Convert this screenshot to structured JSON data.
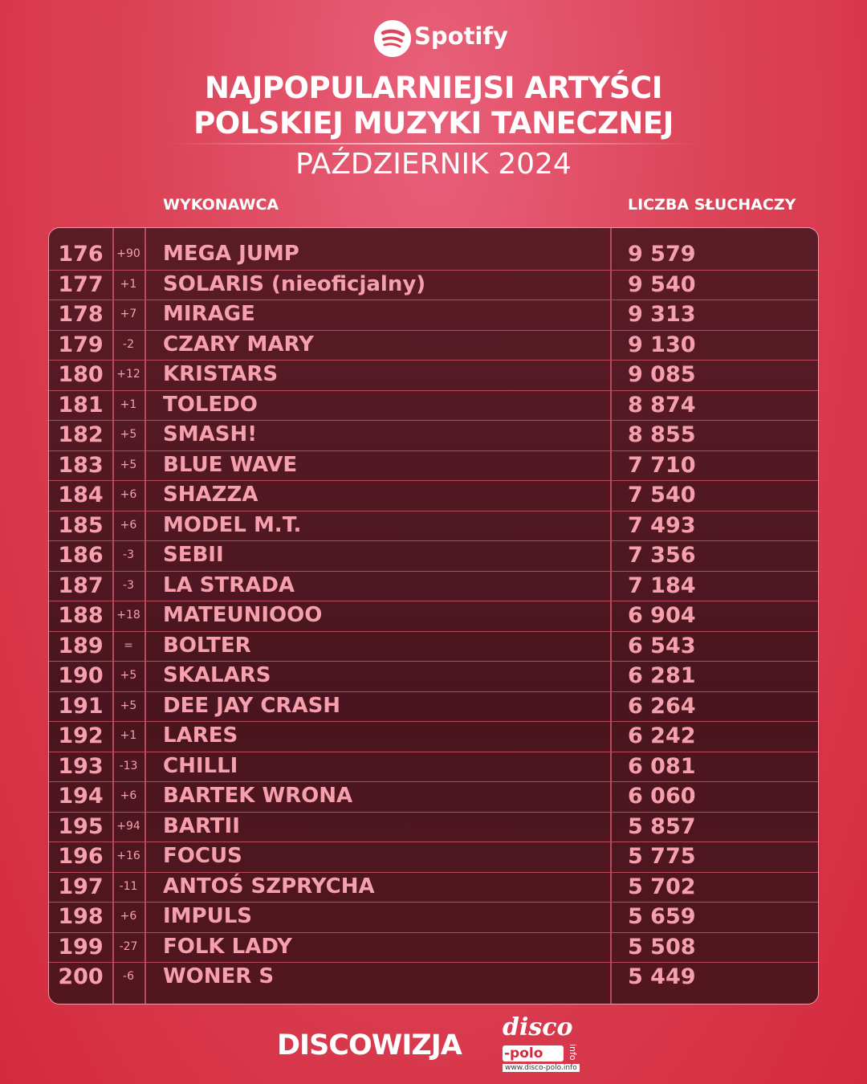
{
  "header": {
    "brand": "Spotify",
    "title_lines": [
      "NAJPOPULARNIEJSI ARTYŚCI",
      "POLSKIEJ MUZYKI TANECZNEJ"
    ],
    "subtitle": "PAŹDZIERNIK 2024",
    "columns": [
      "WYKONAWCA",
      "LICZBA SŁUCHACZY"
    ]
  },
  "table": {
    "rows": [
      [
        "176",
        "+90",
        "MEGA JUMP",
        "9 579"
      ],
      [
        "177",
        "+1",
        "SOLARIS (nieoficjalny)",
        "9 540"
      ],
      [
        "178",
        "+7",
        "MIRAGE",
        "9 313"
      ],
      [
        "179",
        "-2",
        "CZARY MARY",
        "9 130"
      ],
      [
        "180",
        "+12",
        "KRISTARS",
        "9 085"
      ],
      [
        "181",
        "+1",
        "TOLEDO",
        "8 874"
      ],
      [
        "182",
        "+5",
        "SMASH!",
        "8 855"
      ],
      [
        "183",
        "+5",
        "BLUE WAVE",
        "7 710"
      ],
      [
        "184",
        "+6",
        "SHAZZA",
        "7 540"
      ],
      [
        "185",
        "+6",
        "MODEL M.T.",
        "7 493"
      ],
      [
        "186",
        "-3",
        "SEBII",
        "7 356"
      ],
      [
        "187",
        "-3",
        "LA STRADA",
        "7 184"
      ],
      [
        "188",
        "+18",
        "MATEUNIOOO",
        "6 904"
      ],
      [
        "189",
        "=",
        "BOLTER",
        "6 543"
      ],
      [
        "190",
        "+5",
        "SKALARS",
        "6 281"
      ],
      [
        "191",
        "+5",
        "DEE JAY CRASH",
        "6 264"
      ],
      [
        "192",
        "+1",
        "LARES",
        "6 242"
      ],
      [
        "193",
        "-13",
        "CHILLI",
        "6 081"
      ],
      [
        "194",
        "+6",
        "BARTEK WRONA",
        "6 060"
      ],
      [
        "195",
        "+94",
        "BARTII",
        "5 857"
      ],
      [
        "196",
        "+16",
        "FOCUS",
        "5 775"
      ],
      [
        "197",
        "-11",
        "ANTOŚ SZPRYCHA",
        "5 702"
      ],
      [
        "198",
        "+6",
        "IMPULS",
        "5 659"
      ],
      [
        "199",
        "-27",
        "FOLK LADY",
        "5 508"
      ],
      [
        "200",
        "-6",
        "WONER S",
        "5 449"
      ]
    ]
  },
  "footer": {
    "brand": "DISCOWIZJA",
    "logo": [
      "disco",
      "-polo",
      "info"
    ],
    "url": "www.disco-polo.info"
  }
}
